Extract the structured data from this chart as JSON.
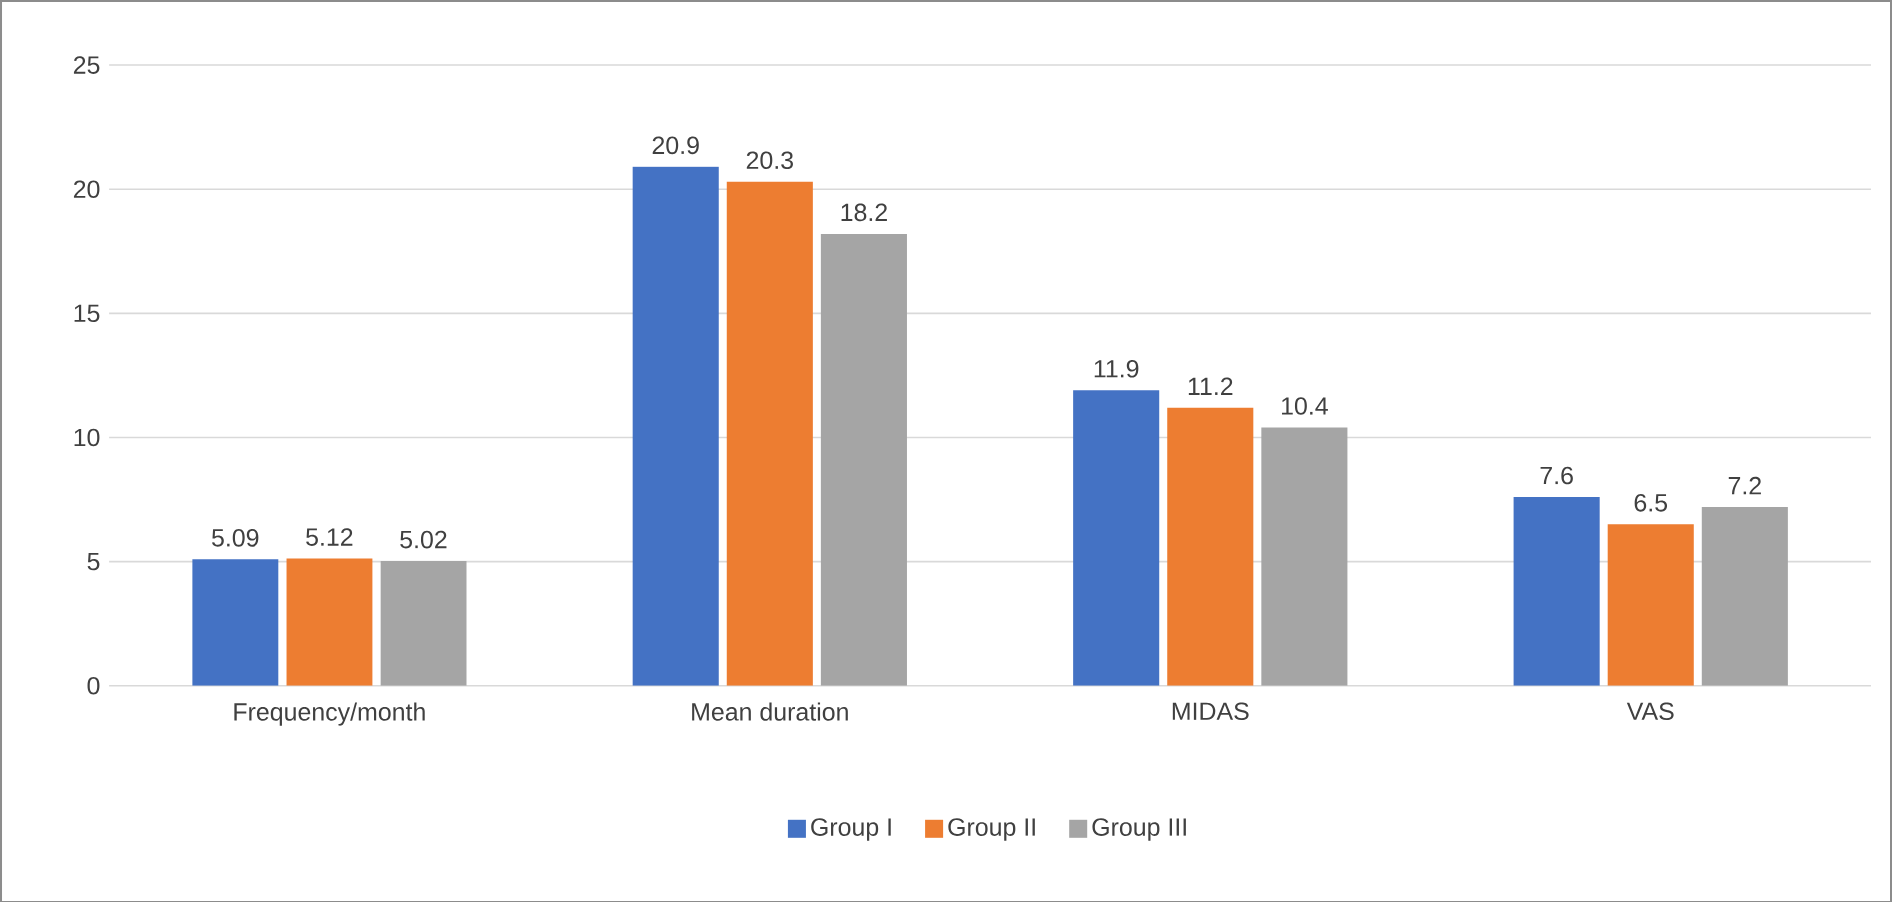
{
  "chart_data": {
    "type": "bar",
    "categories": [
      "Frequency/month",
      "Mean duration",
      "MIDAS",
      "VAS"
    ],
    "series": [
      {
        "name": "Group I",
        "color": "#4472c4",
        "values": [
          5.09,
          20.9,
          11.9,
          7.6
        ]
      },
      {
        "name": "Group II",
        "color": "#ed7d31",
        "values": [
          5.12,
          20.3,
          11.2,
          6.5
        ]
      },
      {
        "name": "Group III",
        "color": "#a5a5a5",
        "values": [
          5.02,
          18.2,
          10.4,
          7.2
        ]
      }
    ],
    "ylim": [
      0,
      25
    ],
    "yticks": [
      0,
      5,
      10,
      15,
      20,
      25
    ],
    "grid": "y",
    "legend": "bottom",
    "data_labels": true
  }
}
